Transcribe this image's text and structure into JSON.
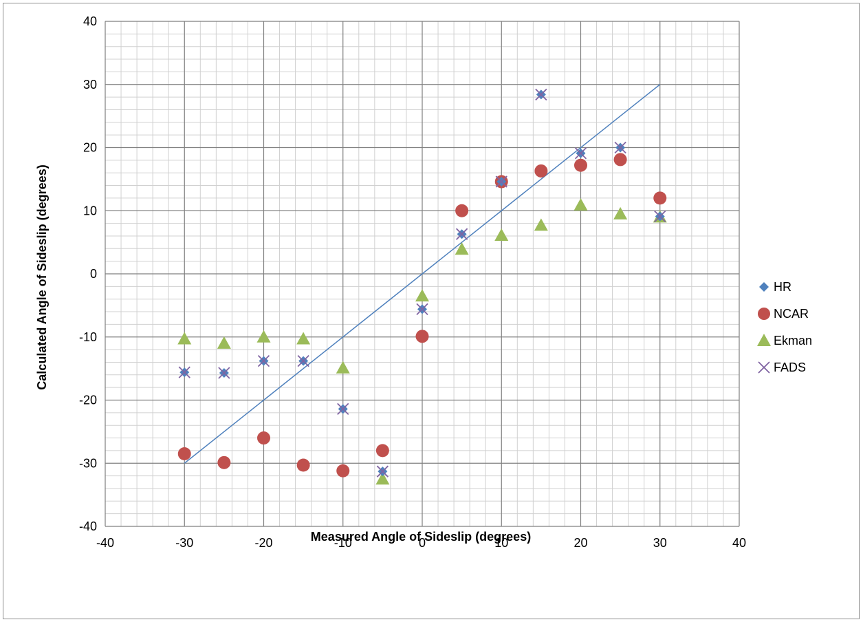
{
  "chart_data": {
    "type": "scatter",
    "title": "",
    "xlabel": "Measured Angle of Sideslip (degrees)",
    "ylabel": "Calculated Angle of Sideslip (degrees)",
    "xlim": [
      -40,
      40
    ],
    "ylim": [
      -40,
      40
    ],
    "xticks": [
      -40,
      -30,
      -20,
      -10,
      0,
      10,
      20,
      30,
      40
    ],
    "yticks": [
      -40,
      -30,
      -20,
      -10,
      0,
      10,
      20,
      30,
      40
    ],
    "grid": "major every 10, minor every 2",
    "legend_position": "right",
    "reference_line": {
      "x": [
        -30,
        30
      ],
      "y": [
        -30,
        30
      ],
      "color": "#4f81bd"
    },
    "series": [
      {
        "name": "HR",
        "marker": "diamond",
        "color": "#4f81bd",
        "x": [
          -30,
          -25,
          -20,
          -15,
          -10,
          -5,
          0,
          5,
          10,
          15,
          20,
          25,
          30
        ],
        "y": [
          -15.6,
          -15.7,
          -13.8,
          -13.8,
          -21.4,
          -31.3,
          -5.6,
          6.3,
          14.6,
          28.4,
          19.1,
          20.0,
          9.1
        ]
      },
      {
        "name": "NCAR",
        "marker": "circle",
        "color": "#c0504d",
        "x": [
          -30,
          -25,
          -20,
          -15,
          -10,
          -5,
          0,
          5,
          10,
          15,
          20,
          25,
          30
        ],
        "y": [
          -28.5,
          -29.9,
          -26.0,
          -30.3,
          -31.2,
          -28.0,
          -9.9,
          10.0,
          14.6,
          16.3,
          17.2,
          18.1,
          12.0
        ]
      },
      {
        "name": "Ekman",
        "marker": "triangle",
        "color": "#9bbb59",
        "x": [
          -30,
          -25,
          -20,
          -15,
          -10,
          -5,
          0,
          5,
          10,
          15,
          20,
          25,
          30
        ],
        "y": [
          -10.3,
          -11.0,
          -10.0,
          -10.3,
          -14.9,
          -32.5,
          -3.5,
          3.9,
          6.1,
          7.7,
          10.9,
          9.5,
          9.0
        ]
      },
      {
        "name": "FADS",
        "marker": "x",
        "color": "#8064a2",
        "x": [
          -30,
          -25,
          -20,
          -15,
          -10,
          -5,
          0,
          5,
          10,
          15,
          20,
          25,
          30
        ],
        "y": [
          -15.6,
          -15.7,
          -13.8,
          -13.8,
          -21.4,
          -31.3,
          -5.6,
          6.3,
          14.6,
          28.4,
          19.1,
          20.0,
          9.1
        ]
      }
    ]
  }
}
